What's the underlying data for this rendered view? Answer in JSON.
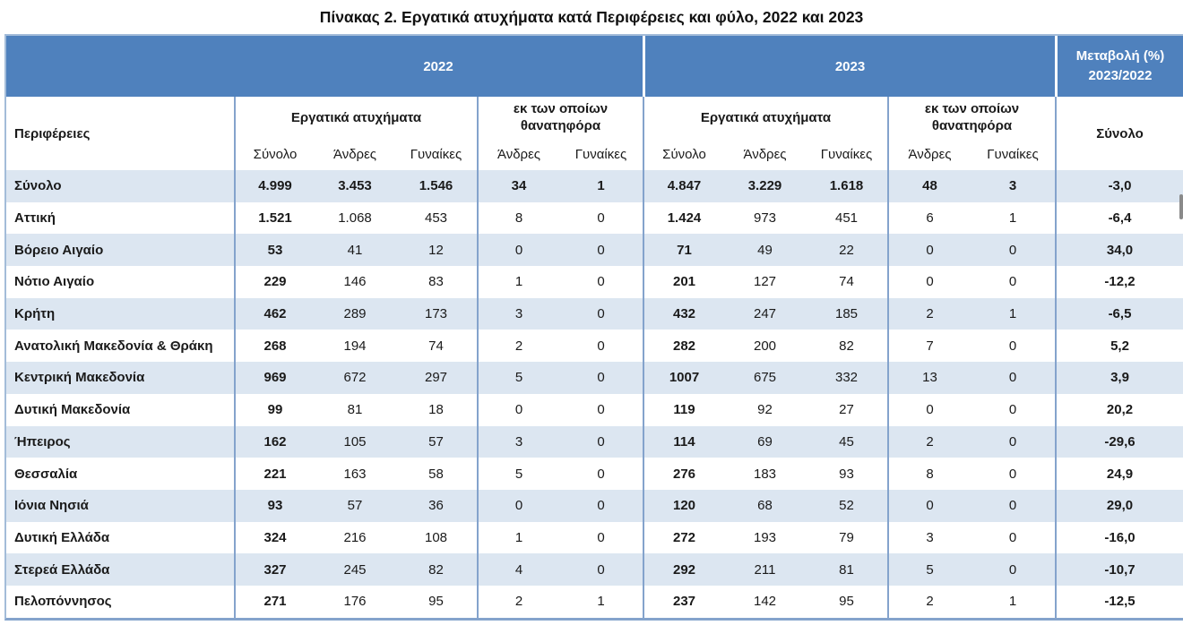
{
  "title": "Πίνακας 2. Εργατικά ατυχήματα κατά Περιφέρειες και φύλο, 2022 και 2023",
  "header": {
    "year_2022": "2022",
    "year_2023": "2023",
    "change_label": "Μεταβολή (%)\n2023/2022",
    "regions_label": "Περιφέρειες",
    "accidents_label": "Εργατικά ατυχήματα",
    "fatal_label": "εκ των οποίων θανατηφόρα",
    "change_total_label": "Σύνολο",
    "sub": {
      "total": "Σύνολο",
      "men": "Άνδρες",
      "women": "Γυναίκες"
    }
  },
  "rows": [
    {
      "region": "Σύνολο",
      "y2022": [
        "4.999",
        "3.453",
        "1.546",
        "34",
        "1"
      ],
      "y2023": [
        "4.847",
        "3.229",
        "1.618",
        "48",
        "3"
      ],
      "change": "-3,0",
      "is_total": true
    },
    {
      "region": "Αττική",
      "y2022": [
        "1.521",
        "1.068",
        "453",
        "8",
        "0"
      ],
      "y2023": [
        "1.424",
        "973",
        "451",
        "6",
        "1"
      ],
      "change": "-6,4",
      "is_total": false
    },
    {
      "region": "Βόρειο Αιγαίο",
      "y2022": [
        "53",
        "41",
        "12",
        "0",
        "0"
      ],
      "y2023": [
        "71",
        "49",
        "22",
        "0",
        "0"
      ],
      "change": "34,0",
      "is_total": false
    },
    {
      "region": "Νότιο Αιγαίο",
      "y2022": [
        "229",
        "146",
        "83",
        "1",
        "0"
      ],
      "y2023": [
        "201",
        "127",
        "74",
        "0",
        "0"
      ],
      "change": "-12,2",
      "is_total": false
    },
    {
      "region": "Κρήτη",
      "y2022": [
        "462",
        "289",
        "173",
        "3",
        "0"
      ],
      "y2023": [
        "432",
        "247",
        "185",
        "2",
        "1"
      ],
      "change": "-6,5",
      "is_total": false
    },
    {
      "region": "Ανατολική Μακεδονία & Θράκη",
      "y2022": [
        "268",
        "194",
        "74",
        "2",
        "0"
      ],
      "y2023": [
        "282",
        "200",
        "82",
        "7",
        "0"
      ],
      "change": "5,2",
      "is_total": false
    },
    {
      "region": "Κεντρική Μακεδονία",
      "y2022": [
        "969",
        "672",
        "297",
        "5",
        "0"
      ],
      "y2023": [
        "1007",
        "675",
        "332",
        "13",
        "0"
      ],
      "change": "3,9",
      "is_total": false
    },
    {
      "region": "Δυτική Μακεδονία",
      "y2022": [
        "99",
        "81",
        "18",
        "0",
        "0"
      ],
      "y2023": [
        "119",
        "92",
        "27",
        "0",
        "0"
      ],
      "change": "20,2",
      "is_total": false
    },
    {
      "region": "Ήπειρος",
      "y2022": [
        "162",
        "105",
        "57",
        "3",
        "0"
      ],
      "y2023": [
        "114",
        "69",
        "45",
        "2",
        "0"
      ],
      "change": "-29,6",
      "is_total": false
    },
    {
      "region": "Θεσσαλία",
      "y2022": [
        "221",
        "163",
        "58",
        "5",
        "0"
      ],
      "y2023": [
        "276",
        "183",
        "93",
        "8",
        "0"
      ],
      "change": "24,9",
      "is_total": false
    },
    {
      "region": "Ιόνια Νησιά",
      "y2022": [
        "93",
        "57",
        "36",
        "0",
        "0"
      ],
      "y2023": [
        "120",
        "68",
        "52",
        "0",
        "0"
      ],
      "change": "29,0",
      "is_total": false
    },
    {
      "region": "Δυτική Ελλάδα",
      "y2022": [
        "324",
        "216",
        "108",
        "1",
        "0"
      ],
      "y2023": [
        "272",
        "193",
        "79",
        "3",
        "0"
      ],
      "change": "-16,0",
      "is_total": false
    },
    {
      "region": "Στερεά Ελλάδα",
      "y2022": [
        "327",
        "245",
        "82",
        "4",
        "0"
      ],
      "y2023": [
        "292",
        "211",
        "81",
        "5",
        "0"
      ],
      "change": "-10,7",
      "is_total": false
    },
    {
      "region": "Πελοπόννησος",
      "y2022": [
        "271",
        "176",
        "95",
        "2",
        "1"
      ],
      "y2023": [
        "237",
        "142",
        "95",
        "2",
        "1"
      ],
      "change": "-12,5",
      "is_total": false
    }
  ],
  "colors": {
    "band": "#4f81bd",
    "stripe": "#dce6f1",
    "divider": "#84a3cc",
    "outer": "#a3bcd9"
  }
}
